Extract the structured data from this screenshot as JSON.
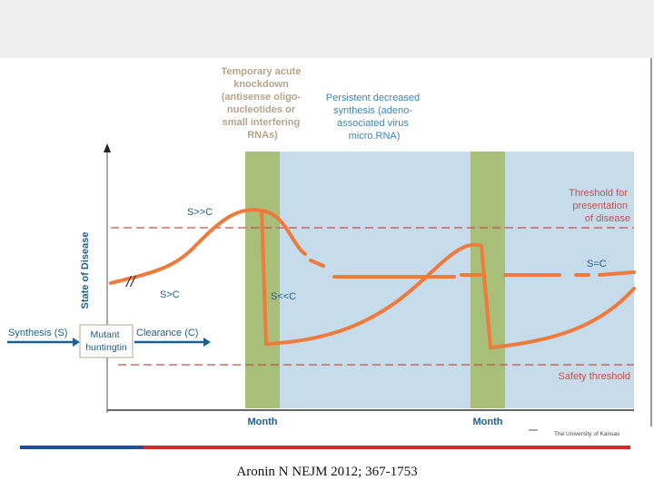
{
  "colors": {
    "gray_label": "#b5a48a",
    "blue_label": "#3d86b9",
    "red": "#c0504d",
    "dark_blue": "#1f5f8b",
    "curve": "#ef7a3b",
    "green": "#a8bf7a",
    "lightblue": "#c6dceb",
    "footer_blue": "#1f4e96",
    "footer_red": "#d9262b"
  },
  "annotations": {
    "temporary_knockdown": [
      "Temporary acute",
      "knockdown",
      "(antisense oligo-",
      "nucleotides or",
      "small interfering",
      "RNAs)"
    ],
    "persistent_decrease": [
      "Persistent decreased",
      "synthesis (adeno-",
      "associated virus",
      "micro.RNA)"
    ],
    "threshold_presentation": [
      "Threshold for",
      "presentation",
      "of disease"
    ],
    "safety_threshold": "Safety threshold",
    "s_eq_c": "S=C",
    "s_gg_c": "S>>C",
    "s_gt_c": "S>C",
    "s_ll_c": "S<<C",
    "break_mark": "//"
  },
  "axis": {
    "y_label": "State of Disease",
    "month_labels": [
      "Month",
      "Month"
    ]
  },
  "flow": {
    "synthesis": "Synthesis (S)",
    "mutant": [
      "Mutant",
      "huntingtin"
    ],
    "clearance": "Clearance (C)"
  },
  "logo_text": "The University of Kansas",
  "citation": "Aronin N NEJM 2012; 367-1753"
}
